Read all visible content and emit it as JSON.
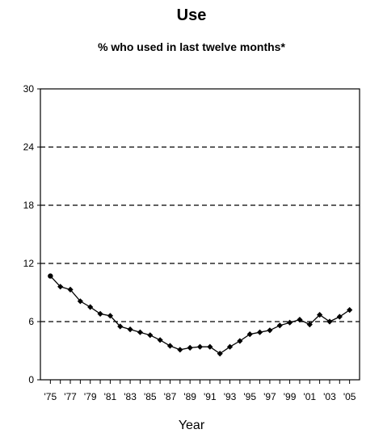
{
  "chart_data": {
    "type": "line",
    "title": "Use",
    "subtitle": "% who used in last twelve months*",
    "xlabel": "Year",
    "ylabel": "",
    "ylim": [
      0,
      30
    ],
    "yticks": [
      0,
      6,
      12,
      18,
      24,
      30
    ],
    "xtick_labels": [
      "'75",
      "'77",
      "'79",
      "'81",
      "'83",
      "'85",
      "'87",
      "'89",
      "'91",
      "'93",
      "'95",
      "'97",
      "'99",
      "'01",
      "'03",
      "'05"
    ],
    "grid": "dashed horizontal",
    "series": [
      {
        "x": [
          1975,
          1976,
          1977,
          1978,
          1979,
          1980,
          1981,
          1982,
          1983,
          1984,
          1985,
          1986,
          1987,
          1988,
          1989,
          1990,
          1991,
          1992,
          1993,
          1994,
          1995,
          1996,
          1997,
          1998,
          1999,
          2000,
          2001,
          2002,
          2003,
          2004,
          2005
        ],
        "values": [
          10.7,
          9.6,
          9.3,
          8.1,
          7.5,
          6.8,
          6.6,
          5.5,
          5.2,
          4.9,
          4.6,
          4.1,
          3.5,
          3.1,
          3.3,
          3.4,
          3.4,
          2.7,
          3.4,
          4.0,
          4.7,
          4.9,
          5.1,
          5.6,
          5.9,
          6.2,
          5.7,
          6.7,
          6.0,
          6.5,
          7.2
        ]
      }
    ],
    "colors": {
      "line": "#000000",
      "grid": "#000000"
    }
  }
}
